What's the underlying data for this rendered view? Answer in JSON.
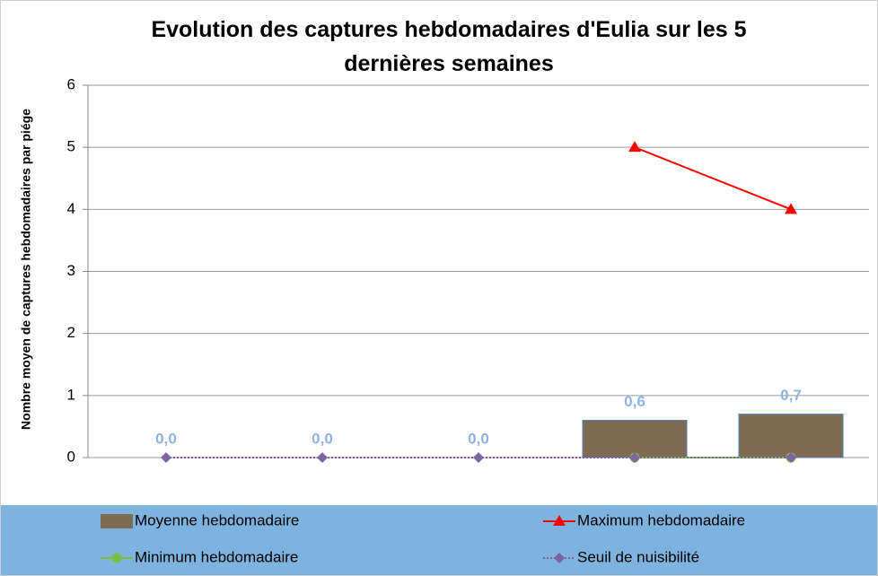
{
  "chart_data": {
    "type": "bar",
    "title": "Evolution des captures hebdomadaires d'Eulia sur les 5 dernières semaines",
    "ylabel": "Nombre moyen de captures hebdomadaires par piége",
    "categories": [
      null,
      null,
      null,
      null,
      null
    ],
    "series": [
      {
        "name": "Moyenne hebdomadaire",
        "type": "bar",
        "color": "#7f6a53",
        "values": [
          0,
          0,
          0,
          0.6,
          0.7
        ],
        "value_labels": [
          "0,0",
          "0,0",
          "0,0",
          "0,6",
          "0,7"
        ]
      },
      {
        "name": "Maximum hebdomadaire",
        "type": "line",
        "marker": "triangle",
        "color": "#ff0000",
        "values": [
          null,
          null,
          null,
          5,
          4
        ]
      },
      {
        "name": "Minimum hebdomadaire",
        "type": "line",
        "marker": "circle",
        "color": "#7ac143",
        "values": [
          null,
          null,
          null,
          0,
          0
        ]
      },
      {
        "name": "Seuil de nuisibilité",
        "type": "line",
        "marker": "diamond",
        "dotted": true,
        "color": "#8064a2",
        "values": [
          0,
          0,
          0,
          0,
          0
        ]
      }
    ],
    "ylim": [
      0,
      6
    ],
    "yticks": [
      0,
      1,
      2,
      3,
      4,
      5,
      6
    ],
    "grid": true,
    "legend": "bottom"
  }
}
